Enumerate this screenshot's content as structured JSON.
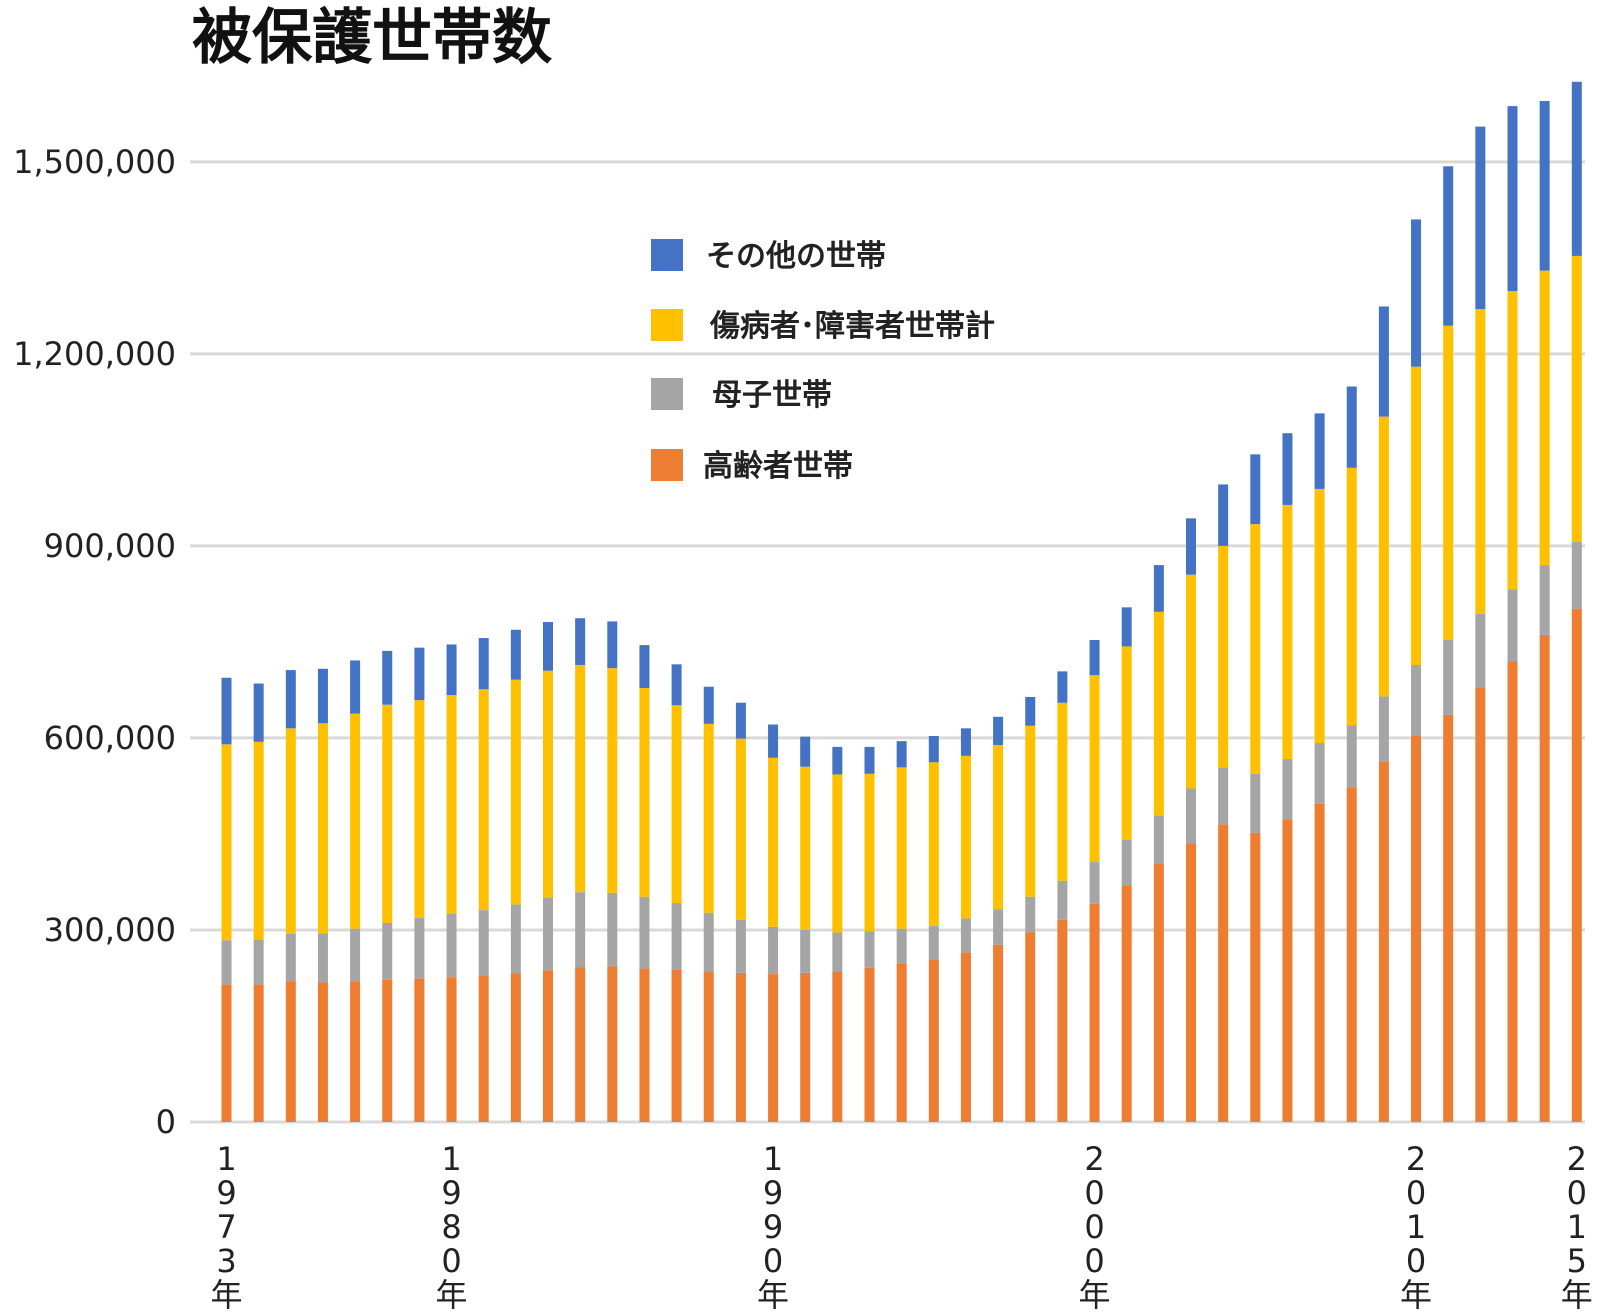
{
  "chart_data": {
    "type": "bar",
    "stacked": true,
    "title": "被保護世帯数",
    "xlabel": "",
    "ylabel": "",
    "ylim": [
      0,
      1620000
    ],
    "yticks": [
      0,
      300000,
      600000,
      900000,
      1200000,
      1500000
    ],
    "ytick_labels": [
      "0",
      "300,000",
      "600,000",
      "900,000",
      "1,200,000",
      "1,500,000"
    ],
    "grid": true,
    "legend": "inside-top-center",
    "categories": [
      1973,
      1974,
      1975,
      1976,
      1977,
      1978,
      1979,
      1980,
      1981,
      1982,
      1983,
      1984,
      1985,
      1986,
      1987,
      1988,
      1989,
      1990,
      1991,
      1992,
      1993,
      1994,
      1995,
      1996,
      1997,
      1998,
      1999,
      2000,
      2001,
      2002,
      2003,
      2004,
      2005,
      2006,
      2007,
      2008,
      2009,
      2010,
      2011,
      2012,
      2013,
      2014,
      2015
    ],
    "x_tick_labels": [
      {
        "year": 1973,
        "chars": [
          "1",
          "9",
          "7",
          "3",
          "年"
        ]
      },
      {
        "year": 1980,
        "chars": [
          "1",
          "9",
          "8",
          "0",
          "年"
        ]
      },
      {
        "year": 1990,
        "chars": [
          "1",
          "9",
          "9",
          "0",
          "年"
        ]
      },
      {
        "year": 2000,
        "chars": [
          "2",
          "0",
          "0",
          "0",
          "年"
        ]
      },
      {
        "year": 2010,
        "chars": [
          "2",
          "0",
          "1",
          "0",
          "年"
        ]
      },
      {
        "year": 2015,
        "chars": [
          "2",
          "0",
          "1",
          "5",
          "年"
        ]
      }
    ],
    "series": [
      {
        "name": "高齢者世帯",
        "color": "#ed7d31",
        "values": [
          215000,
          215000,
          220000,
          218000,
          220000,
          222000,
          224000,
          225000,
          228000,
          232000,
          237000,
          242000,
          243000,
          240000,
          238000,
          235000,
          233000,
          231000,
          233000,
          235000,
          241000,
          248000,
          254000,
          265000,
          277000,
          296000,
          316000,
          341000,
          370000,
          403000,
          435000,
          465000,
          452000,
          473000,
          497000,
          523000,
          563000,
          603000,
          636000,
          678000,
          720000,
          761000,
          802000
        ]
      },
      {
        "name": "母子世帯",
        "color": "#a5a5a5",
        "values": [
          69000,
          70000,
          74000,
          77000,
          82000,
          89000,
          95000,
          100000,
          103000,
          108000,
          113000,
          117000,
          115000,
          112000,
          104000,
          92000,
          83000,
          74000,
          67000,
          61000,
          57000,
          54000,
          52000,
          53000,
          55000,
          56000,
          61000,
          65000,
          71000,
          76000,
          86000,
          89000,
          92000,
          94000,
          95000,
          97000,
          102000,
          111000,
          117000,
          116000,
          112000,
          109000,
          104000
        ]
      },
      {
        "name": "傷病者･障害者世帯計",
        "color": "#ffc000",
        "values": [
          306000,
          309000,
          321000,
          328000,
          336000,
          341000,
          340000,
          342000,
          345000,
          351000,
          355000,
          355000,
          351000,
          326000,
          309000,
          295000,
          283000,
          264000,
          255000,
          247000,
          246000,
          252000,
          256000,
          254000,
          257000,
          267000,
          278000,
          292000,
          302000,
          318000,
          334000,
          346000,
          390000,
          397000,
          397000,
          402000,
          437000,
          466000,
          491000,
          476000,
          466000,
          460000,
          447000
        ]
      },
      {
        "name": "その他の世帯",
        "color": "#4472c4",
        "values": [
          104000,
          91000,
          91000,
          85000,
          83000,
          84000,
          82000,
          79000,
          80000,
          78000,
          76000,
          73000,
          73000,
          67000,
          64000,
          58000,
          56000,
          52000,
          47000,
          43000,
          42000,
          41000,
          41000,
          43000,
          44000,
          45000,
          49000,
          55000,
          61000,
          73000,
          88000,
          96000,
          109000,
          112000,
          118000,
          127000,
          172000,
          230000,
          249000,
          285000,
          289000,
          265000,
          272000
        ]
      }
    ]
  }
}
